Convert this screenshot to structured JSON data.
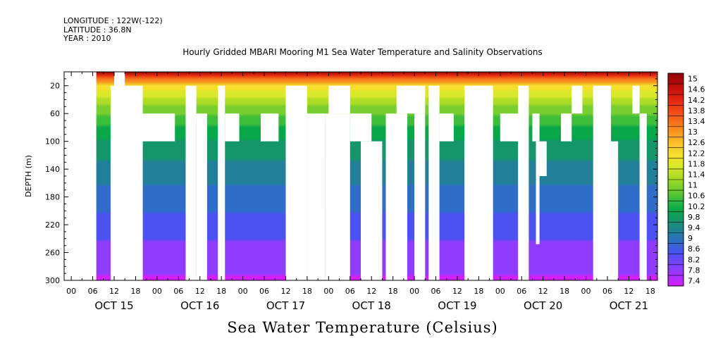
{
  "header": {
    "lines": [
      "LONGITUDE : 122W(-122)",
      "LATITUDE : 36.8N",
      "YEAR : 2010"
    ]
  },
  "chart_data": {
    "type": "heatmap",
    "title": "Hourly Gridded MBARI Mooring M1 Sea Water Temperature and Salinity Observations",
    "xlabel": "Sea Water Temperature (Celsius)",
    "ylabel": "DEPTH (m)",
    "x_range_hours": [
      0,
      168
    ],
    "xlim": [
      -8,
      158
    ],
    "ylim": [
      300,
      0
    ],
    "y_ticks": [
      20,
      60,
      100,
      140,
      180,
      220,
      260,
      300
    ],
    "x_hour_ticks": [
      "00",
      "06",
      "12",
      "18",
      "00",
      "06",
      "12",
      "18",
      "00",
      "06",
      "12",
      "18",
      "00",
      "06",
      "12",
      "18",
      "00",
      "06",
      "12",
      "18",
      "00",
      "06",
      "12",
      "18",
      "00",
      "06",
      "12",
      "18"
    ],
    "x_days": [
      "OCT 15",
      "OCT 16",
      "OCT 17",
      "OCT 18",
      "OCT 19",
      "OCT 20",
      "OCT 21"
    ],
    "colorbar": {
      "min": 7.4,
      "max": 15.2,
      "labels": [
        "15",
        "14.6",
        "14.2",
        "13.8",
        "13.4",
        "13",
        "12.6",
        "12.2",
        "11.8",
        "11.4",
        "11",
        "10.6",
        "10.2",
        "9.8",
        "9.4",
        "9",
        "8.6",
        "8.2",
        "7.8",
        "7.4"
      ]
    },
    "temperature_profile": {
      "surface_c": 15.0,
      "depth_20m_c": 12.2,
      "depth_60m_c": 10.8,
      "depth_100m_c": 9.9,
      "depth_200m_c": 8.8,
      "depth_300m_c": 7.6
    },
    "missing_data_blocks_hours_depth_m": [
      {
        "x": [
          -6,
          1
        ],
        "y": [
          0,
          300
        ]
      },
      {
        "x": [
          5,
          14
        ],
        "y": [
          20,
          300
        ]
      },
      {
        "x": [
          6,
          9
        ],
        "y": [
          0,
          20
        ]
      },
      {
        "x": [
          12,
          23
        ],
        "y": [
          60,
          100
        ]
      },
      {
        "x": [
          26,
          29
        ],
        "y": [
          20,
          300
        ]
      },
      {
        "x": [
          29,
          32
        ],
        "y": [
          60,
          300
        ]
      },
      {
        "x": [
          35,
          37
        ],
        "y": [
          20,
          300
        ]
      },
      {
        "x": [
          37,
          41
        ],
        "y": [
          60,
          100
        ]
      },
      {
        "x": [
          47,
          52
        ],
        "y": [
          60,
          100
        ]
      },
      {
        "x": [
          54,
          60
        ],
        "y": [
          20,
          300
        ]
      },
      {
        "x": [
          60,
          65
        ],
        "y": [
          60,
          300
        ]
      },
      {
        "x": [
          66,
          72
        ],
        "y": [
          20,
          60
        ]
      },
      {
        "x": [
          65,
          72
        ],
        "y": [
          60,
          300
        ]
      },
      {
        "x": [
          72,
          78
        ],
        "y": [
          60,
          100
        ]
      },
      {
        "x": [
          75,
          81
        ],
        "y": [
          100,
          300
        ]
      },
      {
        "x": [
          82,
          88
        ],
        "y": [
          60,
          300
        ]
      },
      {
        "x": [
          85,
          93
        ],
        "y": [
          20,
          60
        ]
      },
      {
        "x": [
          90,
          93
        ],
        "y": [
          60,
          300
        ]
      },
      {
        "x": [
          94,
          97
        ],
        "y": [
          20,
          300
        ]
      },
      {
        "x": [
          97,
          101
        ],
        "y": [
          60,
          100
        ]
      },
      {
        "x": [
          104,
          112
        ],
        "y": [
          20,
          300
        ]
      },
      {
        "x": [
          114,
          120
        ],
        "y": [
          60,
          100
        ]
      },
      {
        "x": [
          119,
          122
        ],
        "y": [
          20,
          300
        ]
      },
      {
        "x": [
          123,
          125
        ],
        "y": [
          60,
          100
        ]
      },
      {
        "x": [
          124,
          127
        ],
        "y": [
          100,
          150
        ]
      },
      {
        "x": [
          124,
          125
        ],
        "y": [
          150,
          248
        ]
      },
      {
        "x": [
          131,
          134
        ],
        "y": [
          60,
          100
        ]
      },
      {
        "x": [
          134,
          137
        ],
        "y": [
          20,
          60
        ]
      },
      {
        "x": [
          140,
          145
        ],
        "y": [
          20,
          300
        ]
      },
      {
        "x": [
          145,
          147
        ],
        "y": [
          100,
          300
        ]
      },
      {
        "x": [
          151,
          153
        ],
        "y": [
          20,
          60
        ]
      },
      {
        "x": [
          153,
          155
        ],
        "y": [
          60,
          300
        ]
      }
    ]
  }
}
